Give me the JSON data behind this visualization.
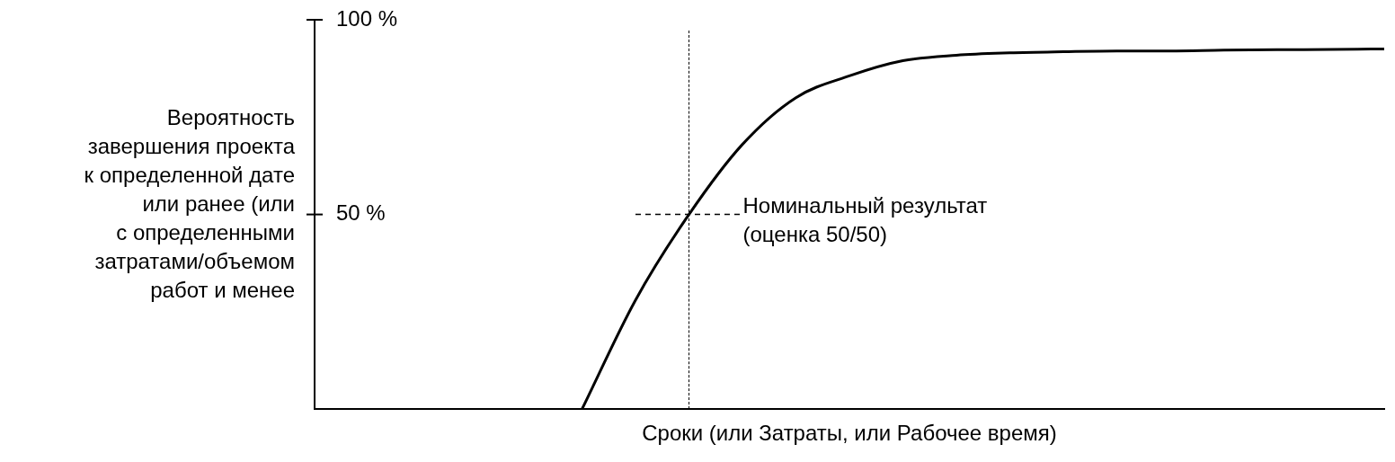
{
  "chart_data": {
    "type": "line",
    "xlabel": "Сроки (или Затраты, или Рабочее время)",
    "ylabel": "Вероятность\nзавершения проекта\nк определенной дате\nили ранее (или\nс определенными\nзатратами/объемом\nработ и менее",
    "categories": [
      null,
      null,
      null,
      null,
      null,
      null,
      null,
      null,
      null,
      null,
      null,
      null,
      null,
      null,
      null,
      null,
      null,
      null,
      null,
      null,
      null
    ],
    "ylim": [
      0,
      100
    ],
    "yticks": [
      {
        "value": 100,
        "label": "100 %"
      },
      {
        "value": 50,
        "label": "50 %"
      }
    ],
    "tick_labels": "y",
    "marker": "none",
    "series": [
      {
        "color": "#000000",
        "line_style": "solid",
        "values": [
          null,
          null,
          null,
          null,
          null,
          0,
          28,
          50,
          68,
          80,
          85.6,
          89.5,
          90.9,
          91.5,
          91.8,
          92,
          92,
          92.2,
          92.3,
          92.4,
          92.5
        ]
      },
      {
        "color": "#000000",
        "line_style": "dashed",
        "values": [
          null,
          null,
          null,
          null,
          null,
          null,
          50,
          50,
          50,
          null,
          null,
          null,
          null,
          null,
          null,
          null,
          null,
          null,
          null,
          null,
          null
        ]
      }
    ],
    "annotations": [
      "Номинальный результат\n(оценка 50/50)"
    ]
  }
}
